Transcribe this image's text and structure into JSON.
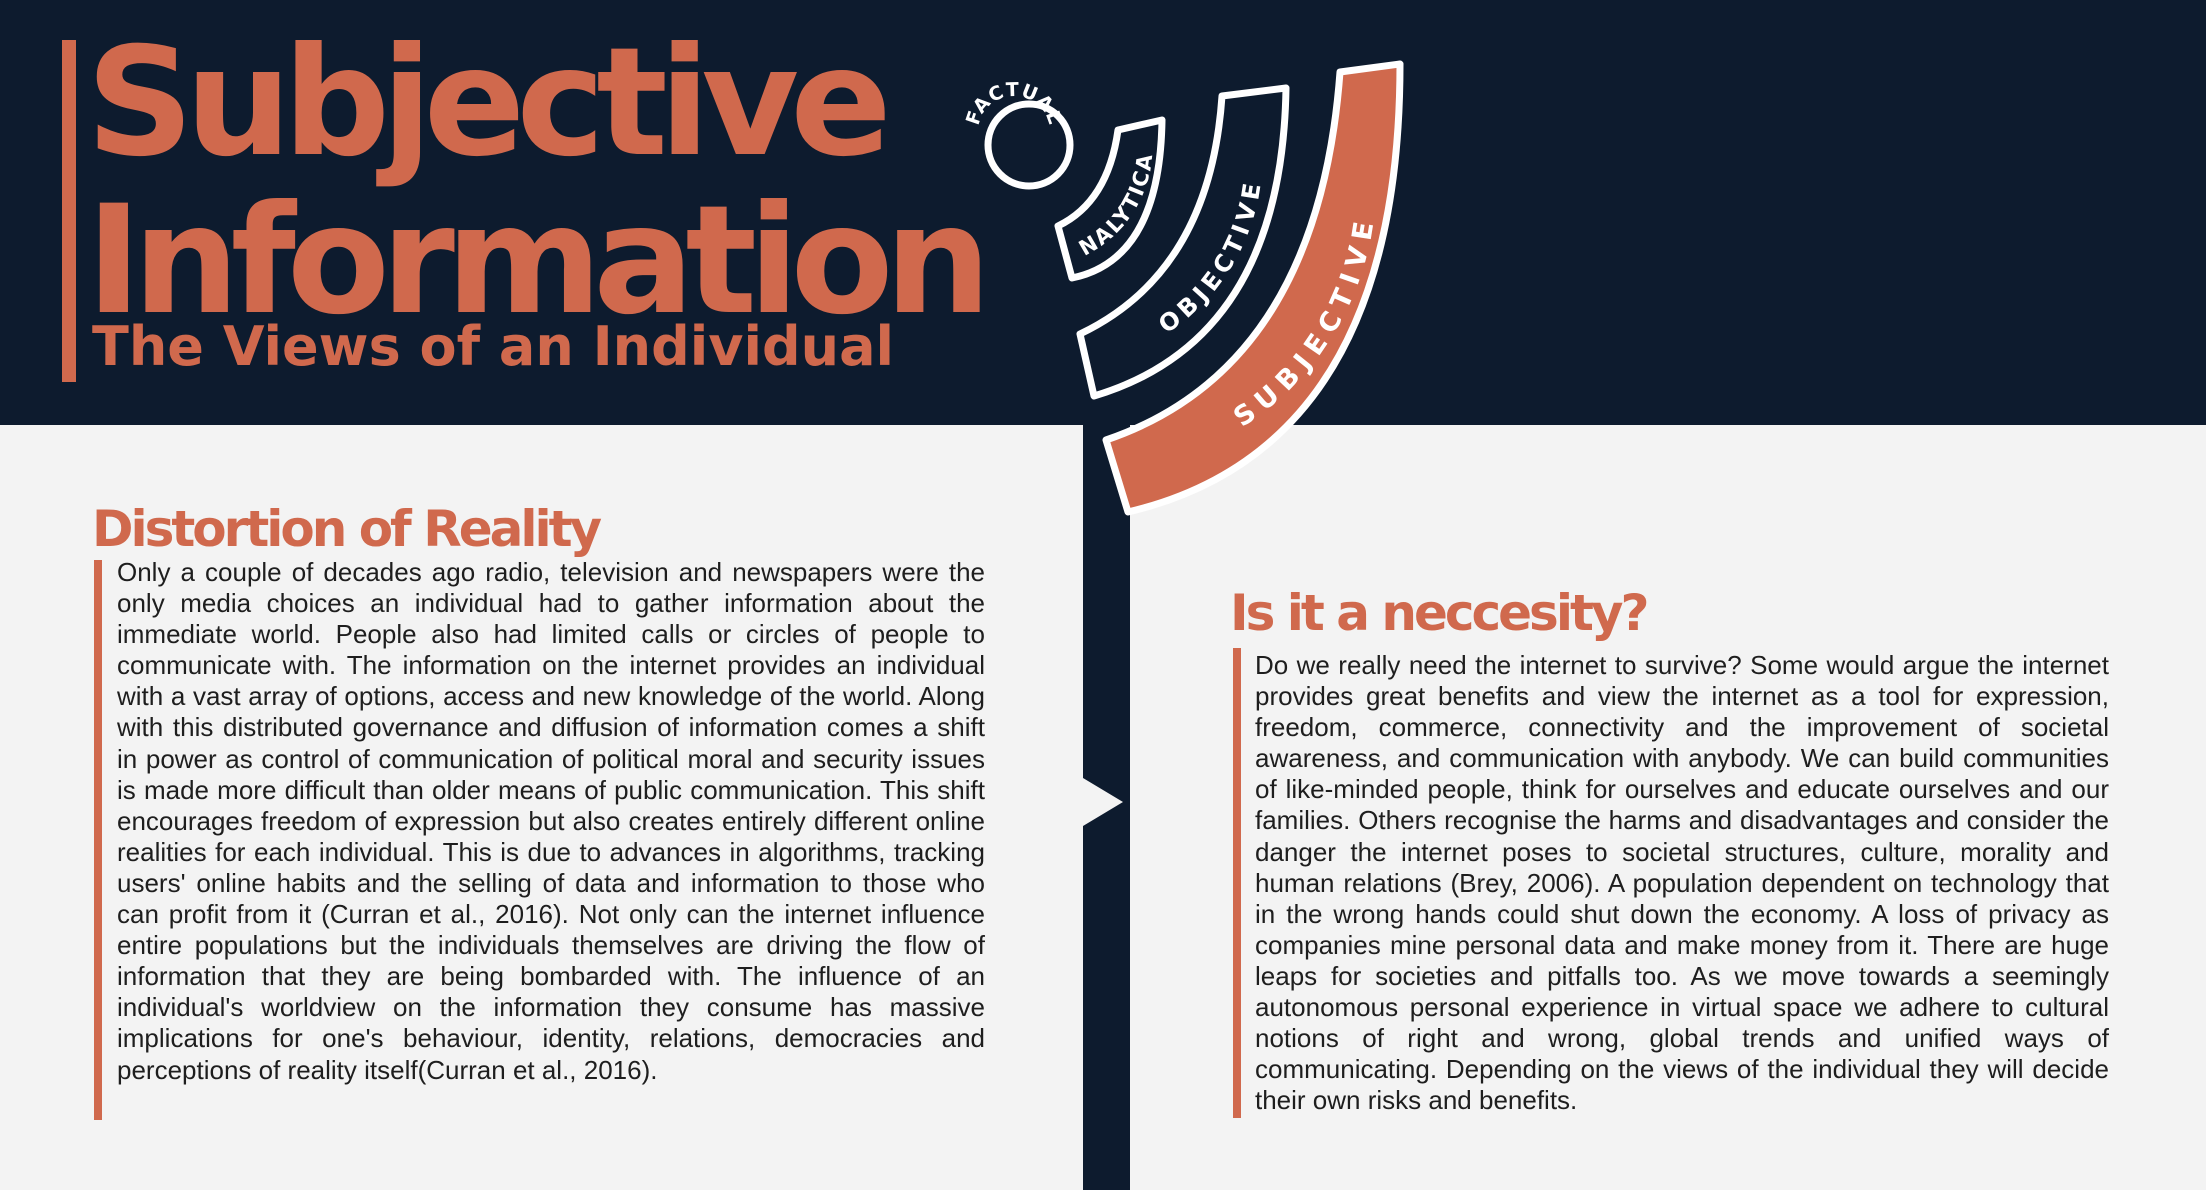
{
  "header": {
    "title_line1": "Subjective",
    "title_line2": "Information",
    "subtitle": "The Views of an Individual"
  },
  "diagram": {
    "levels": [
      "FACTUAL",
      "ANALYTICAL",
      "OBJECTIVE",
      "SUBJECTIVE"
    ],
    "highlight_color": "#d0694d",
    "background_color": "#0d1b2e"
  },
  "left_section": {
    "title": "Distortion of Reality",
    "body": "Only a couple of decades ago radio, television and newspapers were the only media choices an individual had to gather information about the immediate world. People also had limited calls or circles of people to communicate with. The information on the internet provides an individual with a vast array of options, access and new knowledge of the world. Along with this distributed governance and diffusion of information comes a shift in power as control of communication of political moral and security issues is made more difficult than older means of public communication. This shift encourages freedom of expression but also creates entirely different online realities for each individual. This is due to advances in algorithms, tracking users' online habits and the selling of data and information to those who can profit from it (Curran et al., 2016). Not only can the internet influence entire populations but the individuals themselves are driving the flow of information that they are being bombarded with. The influence of an individual's worldview on the information they consume has massive implications for one's behaviour, identity, relations, democracies and perceptions of reality itself(Curran et al., 2016)."
  },
  "right_section": {
    "title": "Is it a neccesity?",
    "body": "Do we really need the internet to survive? Some would argue the internet provides great benefits and view the internet as a tool for expression, freedom, commerce, connectivity and the improvement of societal awareness, and communication with anybody. We can build communities of like-minded people, think for ourselves and educate ourselves and our families. Others recognise the harms and disadvantages and consider the danger the internet poses to societal structures, culture, morality and human relations (Brey, 2006). A population dependent on technology that in the wrong hands could shut down the economy. A loss of privacy as companies mine personal data and make money from it. There are huge leaps for societies and pitfalls too. As we move towards a seemingly autonomous personal experience in virtual space we adhere to cultural notions of right and wrong, global trends and unified ways of communicating. Depending on the views of the individual they will decide their own risks and benefits."
  }
}
